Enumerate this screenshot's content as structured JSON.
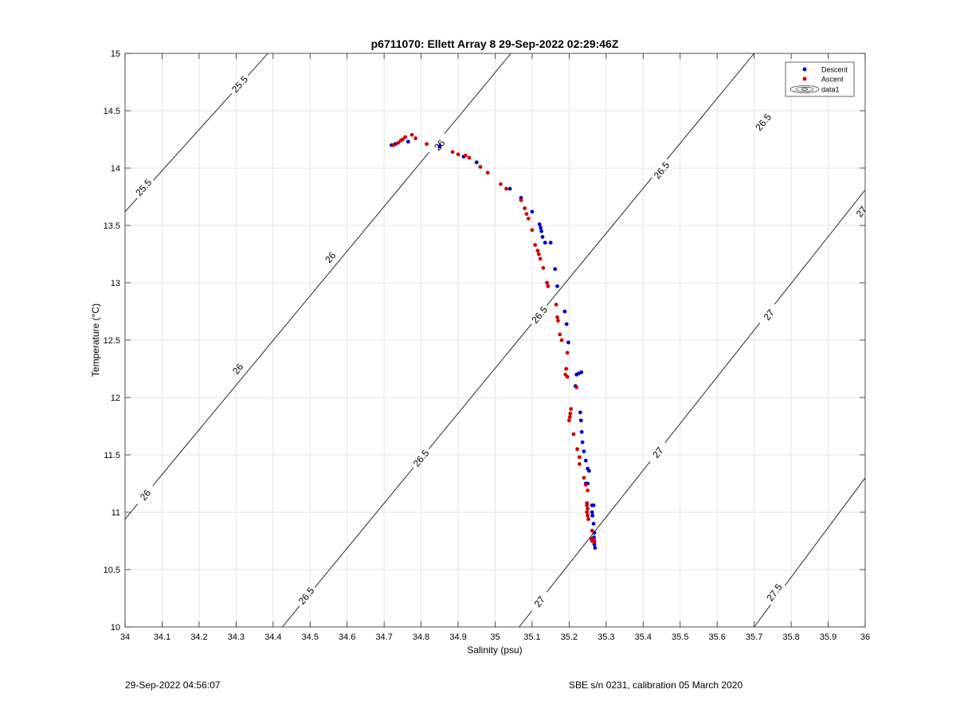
{
  "chart_data": {
    "type": "scatter",
    "title": "p6711070: Ellett Array 8 29-Sep-2022 02:29:46Z",
    "xlabel": "Salinity (psu)",
    "ylabel": "Temperature (°C)",
    "xlim": [
      34,
      36
    ],
    "ylim": [
      10,
      15
    ],
    "x_ticks": [
      "34",
      "34.1",
      "34.2",
      "34.3",
      "34.4",
      "34.5",
      "34.6",
      "34.7",
      "34.8",
      "34.9",
      "35",
      "35.1",
      "35.2",
      "35.3",
      "35.4",
      "35.5",
      "35.6",
      "35.7",
      "35.8",
      "35.9",
      "36"
    ],
    "y_ticks": [
      "10",
      "10.5",
      "11",
      "11.5",
      "12",
      "12.5",
      "13",
      "13.5",
      "14",
      "14.5",
      "15"
    ],
    "grid": true,
    "legend": {
      "position": "top-right",
      "entries": [
        {
          "label": "Descent",
          "color": "#0000c8",
          "marker": "dot"
        },
        {
          "label": "Ascent",
          "color": "#d00000",
          "marker": "dot"
        },
        {
          "label": "data1",
          "marker": "contour"
        }
      ]
    },
    "series": [
      {
        "name": "Descent",
        "color": "#0000c8",
        "points": [
          [
            34.72,
            14.2
          ],
          [
            34.73,
            14.21
          ],
          [
            34.765,
            14.23
          ],
          [
            34.85,
            14.19
          ],
          [
            34.915,
            14.1
          ],
          [
            34.95,
            14.05
          ],
          [
            35.04,
            13.82
          ],
          [
            35.07,
            13.74
          ],
          [
            35.1,
            13.62
          ],
          [
            35.12,
            13.51
          ],
          [
            35.123,
            13.48
          ],
          [
            35.125,
            13.45
          ],
          [
            35.128,
            13.4
          ],
          [
            35.135,
            13.35
          ],
          [
            35.15,
            13.35
          ],
          [
            35.162,
            13.12
          ],
          [
            35.168,
            12.97
          ],
          [
            35.188,
            12.75
          ],
          [
            35.193,
            12.64
          ],
          [
            35.198,
            12.48
          ],
          [
            35.22,
            12.2
          ],
          [
            35.226,
            12.21
          ],
          [
            35.233,
            12.22
          ],
          [
            35.217,
            12.1
          ],
          [
            35.23,
            11.87
          ],
          [
            35.232,
            11.8
          ],
          [
            35.234,
            11.7
          ],
          [
            35.236,
            11.61
          ],
          [
            35.24,
            11.53
          ],
          [
            35.245,
            11.45
          ],
          [
            35.25,
            11.38
          ],
          [
            35.254,
            11.36
          ],
          [
            35.245,
            11.25
          ],
          [
            35.25,
            11.25
          ],
          [
            35.262,
            11.06
          ],
          [
            35.266,
            11.06
          ],
          [
            35.262,
            11.0
          ],
          [
            35.263,
            10.97
          ],
          [
            35.266,
            10.9
          ],
          [
            35.268,
            10.82
          ],
          [
            35.267,
            10.78
          ],
          [
            35.268,
            10.75
          ],
          [
            35.268,
            10.72
          ],
          [
            35.27,
            10.69
          ]
        ]
      },
      {
        "name": "Ascent",
        "color": "#d00000",
        "points": [
          [
            34.725,
            14.2
          ],
          [
            34.738,
            14.22
          ],
          [
            34.745,
            14.24
          ],
          [
            34.75,
            14.25
          ],
          [
            34.757,
            14.27
          ],
          [
            34.775,
            14.29
          ],
          [
            34.785,
            14.26
          ],
          [
            34.815,
            14.21
          ],
          [
            34.885,
            14.14
          ],
          [
            34.9,
            14.12
          ],
          [
            34.92,
            14.11
          ],
          [
            34.93,
            14.09
          ],
          [
            34.96,
            14.01
          ],
          [
            34.98,
            13.96
          ],
          [
            35.015,
            13.86
          ],
          [
            35.03,
            13.82
          ],
          [
            35.07,
            13.72
          ],
          [
            35.08,
            13.65
          ],
          [
            35.085,
            13.6
          ],
          [
            35.09,
            13.56
          ],
          [
            35.1,
            13.46
          ],
          [
            35.108,
            13.33
          ],
          [
            35.115,
            13.28
          ],
          [
            35.118,
            13.25
          ],
          [
            35.122,
            13.21
          ],
          [
            35.13,
            13.13
          ],
          [
            35.14,
            13.0
          ],
          [
            35.143,
            12.97
          ],
          [
            35.165,
            12.81
          ],
          [
            35.168,
            12.7
          ],
          [
            35.17,
            12.67
          ],
          [
            35.175,
            12.55
          ],
          [
            35.18,
            12.5
          ],
          [
            35.195,
            12.39
          ],
          [
            35.192,
            12.25
          ],
          [
            35.19,
            12.2
          ],
          [
            35.195,
            12.18
          ],
          [
            35.22,
            12.09
          ],
          [
            35.205,
            11.9
          ],
          [
            35.203,
            11.86
          ],
          [
            35.202,
            11.83
          ],
          [
            35.2,
            11.8
          ],
          [
            35.212,
            11.68
          ],
          [
            35.222,
            11.55
          ],
          [
            35.228,
            11.48
          ],
          [
            35.228,
            11.42
          ],
          [
            35.24,
            11.3
          ],
          [
            35.245,
            11.24
          ],
          [
            35.25,
            11.19
          ],
          [
            35.248,
            11.08
          ],
          [
            35.248,
            11.06
          ],
          [
            35.25,
            11.03
          ],
          [
            35.248,
            11.0
          ],
          [
            35.25,
            10.97
          ],
          [
            35.252,
            10.94
          ],
          [
            35.262,
            10.84
          ],
          [
            35.26,
            10.77
          ],
          [
            35.262,
            10.75
          ],
          [
            35.266,
            10.76
          ],
          [
            35.268,
            10.74
          ]
        ]
      }
    ],
    "isopycnals": [
      {
        "label": "25.5",
        "points": [
          [
            34.0,
            13.62
          ],
          [
            34.386,
            15.0
          ]
        ],
        "labels": [
          [
            34.31,
            14.73
          ],
          [
            34.05,
            13.83
          ]
        ]
      },
      {
        "label": "26",
        "points": [
          [
            34.0,
            10.94
          ],
          [
            35.043,
            15.0
          ]
        ],
        "labels": [
          [
            34.055,
            11.15
          ],
          [
            34.305,
            12.25
          ],
          [
            34.555,
            13.22
          ],
          [
            34.85,
            14.2
          ]
        ]
      },
      {
        "label": "26.5",
        "points": [
          [
            34.425,
            10.0
          ],
          [
            35.7,
            15.0
          ]
        ],
        "labels": [
          [
            34.49,
            10.27
          ],
          [
            34.8,
            11.47
          ],
          [
            35.12,
            12.72
          ],
          [
            35.45,
            13.98
          ],
          [
            35.725,
            14.4
          ]
        ]
      },
      {
        "label": "27",
        "points": [
          [
            35.065,
            10.0
          ],
          [
            36.0,
            13.81
          ]
        ],
        "labels": [
          [
            35.12,
            10.22
          ],
          [
            35.44,
            11.52
          ],
          [
            35.74,
            12.72
          ],
          [
            35.99,
            13.62
          ]
        ]
      },
      {
        "label": "27.5",
        "points": [
          [
            35.7,
            10.0
          ],
          [
            36.0,
            11.3
          ]
        ],
        "labels": [
          [
            35.755,
            10.3
          ]
        ]
      }
    ]
  },
  "footer": {
    "left": "29-Sep-2022 04:56:07",
    "right": "SBE s/n 0231, calibration 05 March 2020"
  }
}
